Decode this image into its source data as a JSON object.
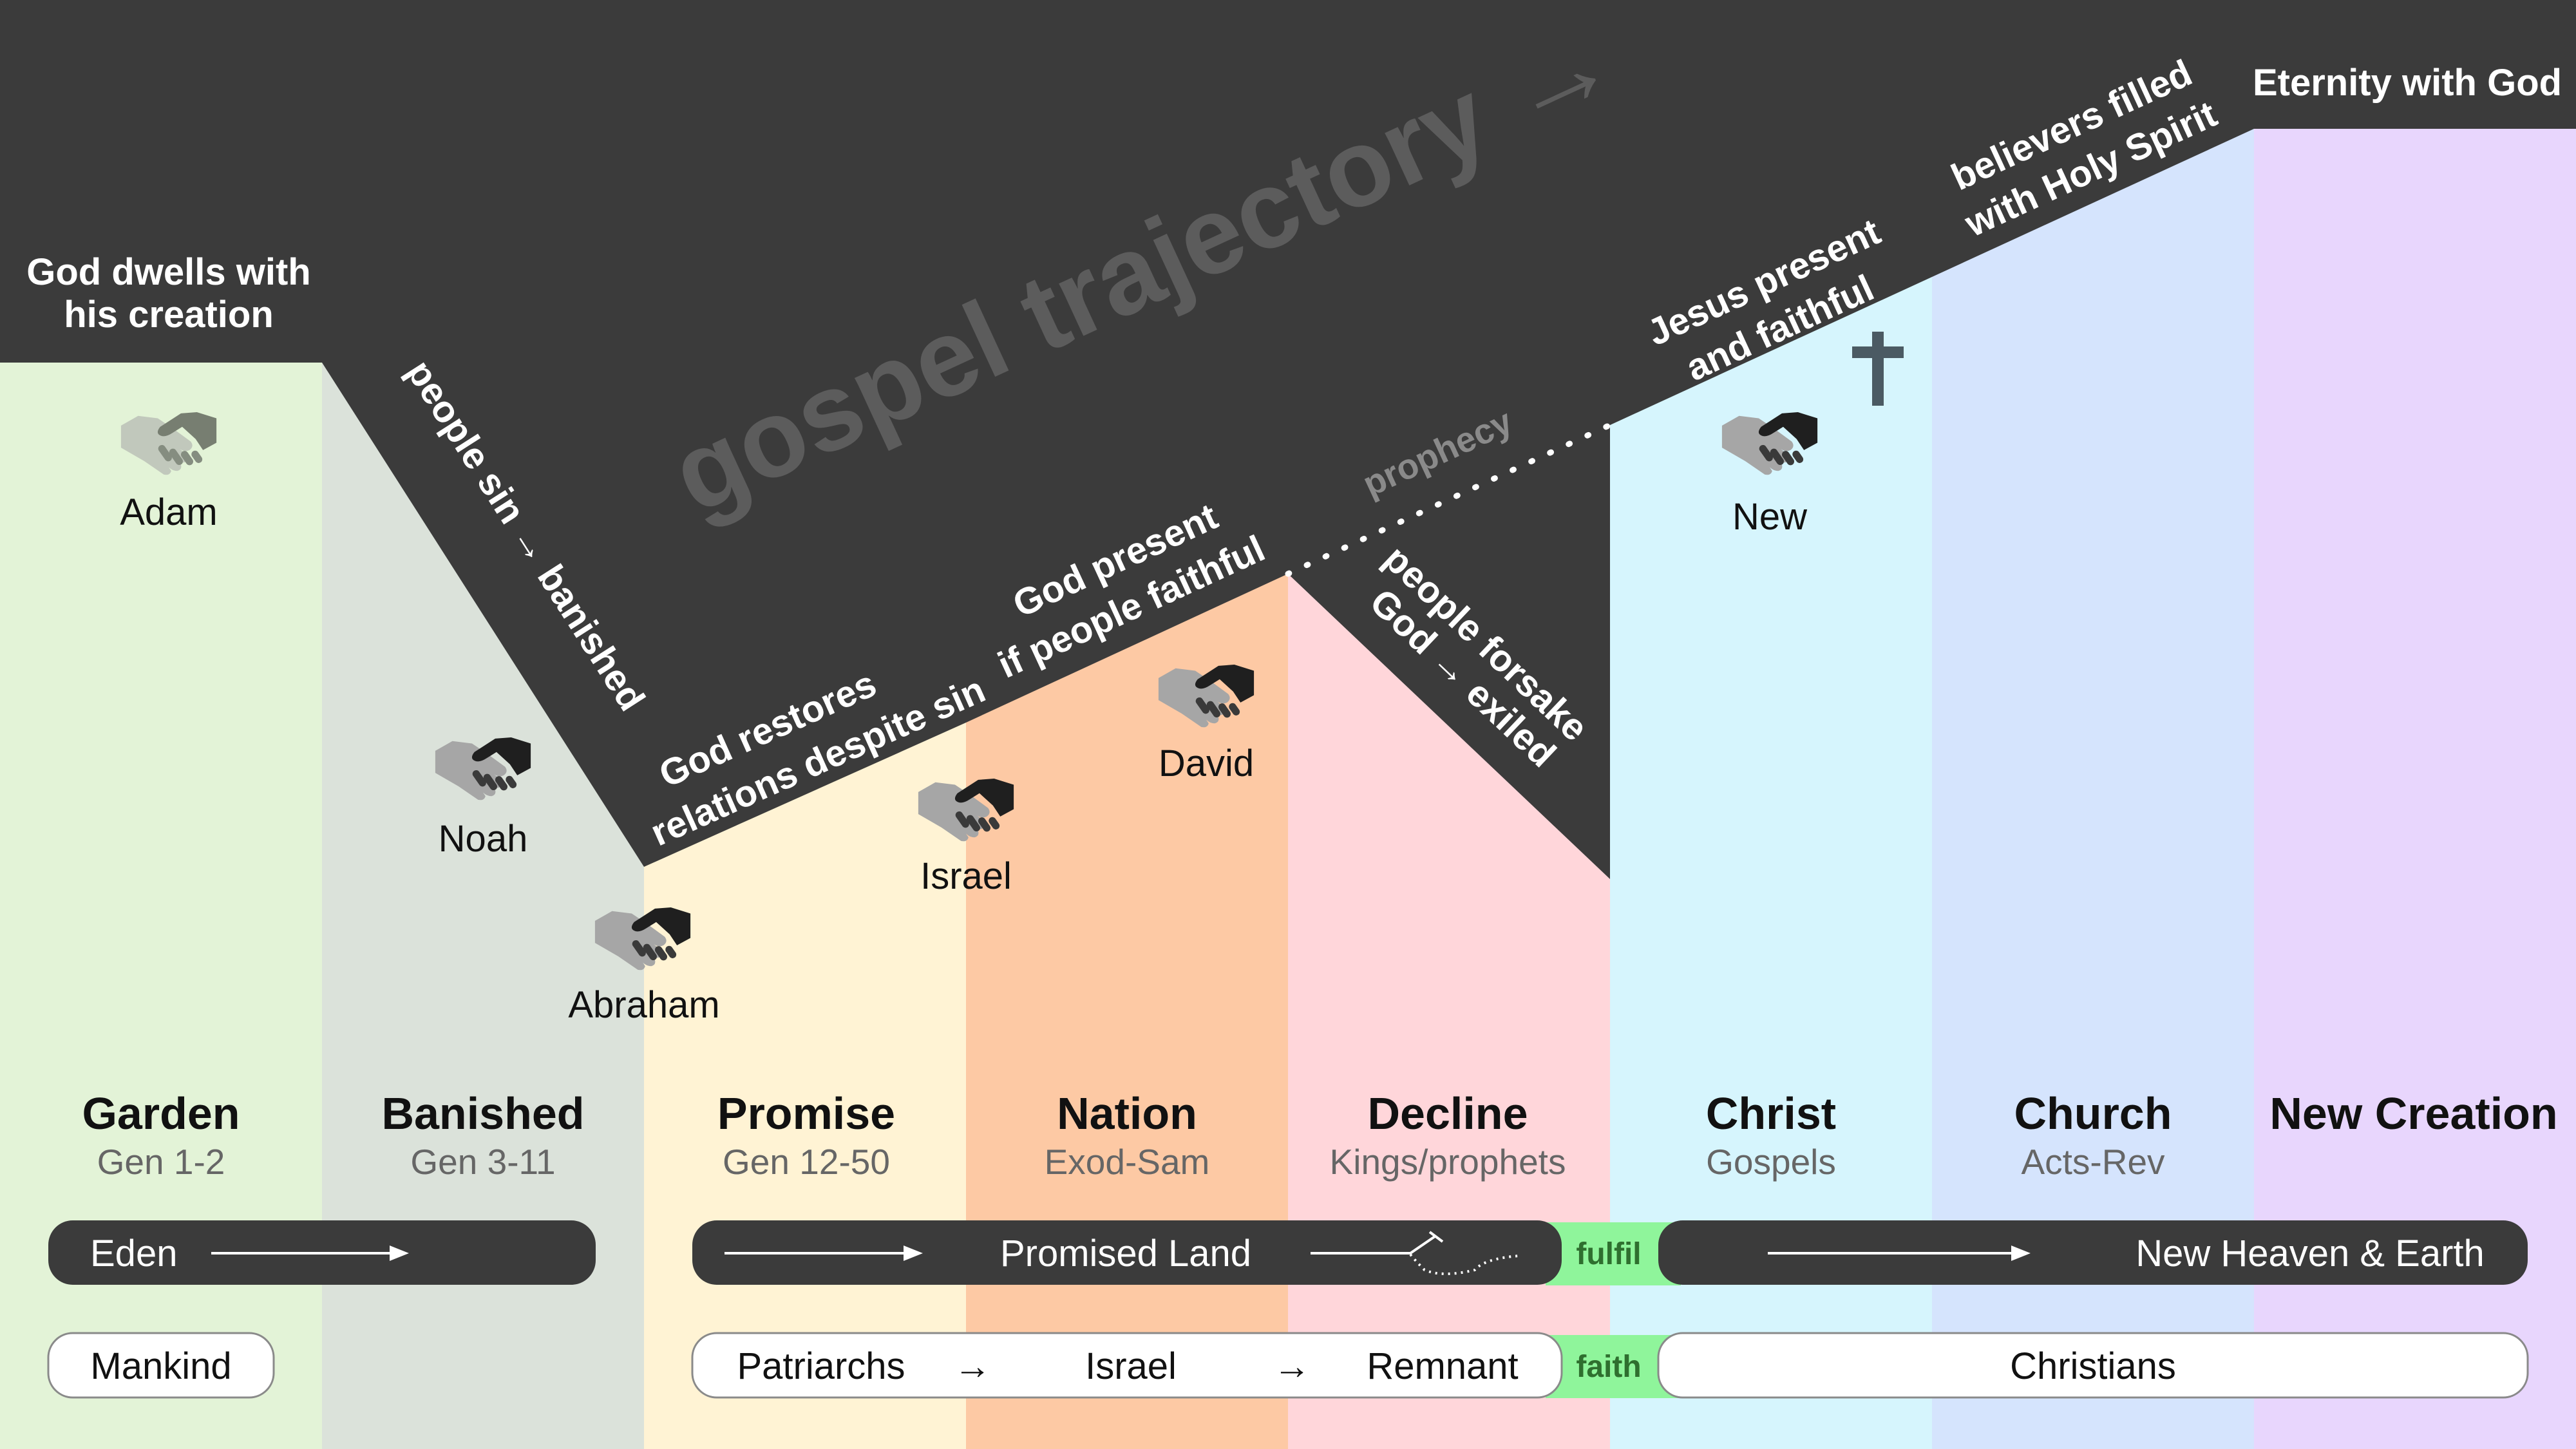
{
  "colors": {
    "background": "#3b3b3b",
    "garden": "#e3f3d7",
    "banished": "#dbe2da",
    "promise": "#fff3d4",
    "nation": "#fdc9a4",
    "decline": "#ffd6da",
    "christ": "#d6f5fd",
    "church": "#d5e4fd",
    "new_creation": "#e8d6fd",
    "link": "#8ff59b"
  },
  "watermark": "gospel trajectory →",
  "trajectory_labels": {
    "dwells_line1": "God dwells with",
    "dwells_line2": "his creation",
    "sin": "people sin → banished",
    "restores_line1": "God restores",
    "restores_line2": "relations despite sin",
    "present_line1": "God present",
    "present_line2": "if people faithful",
    "forsake_line1": "people forsake",
    "forsake_line2": "God → exiled",
    "prophecy": "prophecy",
    "jesus_line1": "Jesus present",
    "jesus_line2": "and faithful",
    "spirit_line1": "believers filled",
    "spirit_line2": "with Holy Spirit",
    "eternity": "Eternity with God"
  },
  "covenants": [
    {
      "name": "Adam",
      "icon": "handshake-icon"
    },
    {
      "name": "Noah",
      "icon": "handshake-icon"
    },
    {
      "name": "Abraham",
      "icon": "handshake-icon"
    },
    {
      "name": "Israel",
      "icon": "handshake-icon"
    },
    {
      "name": "David",
      "icon": "handshake-icon"
    },
    {
      "name": "New",
      "icon": "handshake-icon"
    }
  ],
  "cross_icon": "cross-icon",
  "periods": [
    {
      "name": "Garden",
      "ref": "Gen 1-2"
    },
    {
      "name": "Banished",
      "ref": "Gen 3-11"
    },
    {
      "name": "Promise",
      "ref": "Gen 12-50"
    },
    {
      "name": "Nation",
      "ref": "Exod-Sam"
    },
    {
      "name": "Decline",
      "ref": "Kings/prophets"
    },
    {
      "name": "Christ",
      "ref": "Gospels"
    },
    {
      "name": "Church",
      "ref": "Acts-Rev"
    },
    {
      "name": "New Creation",
      "ref": ""
    }
  ],
  "place_row": {
    "eden": "Eden",
    "promised_land": "Promised Land",
    "fulfil": "fulfil",
    "new_heaven": "New Heaven & Earth"
  },
  "people_row": {
    "mankind": "Mankind",
    "patriarchs": "Patriarchs",
    "israel": "Israel",
    "remnant": "Remnant",
    "faith": "faith",
    "christians": "Christians",
    "arrow": "→"
  }
}
